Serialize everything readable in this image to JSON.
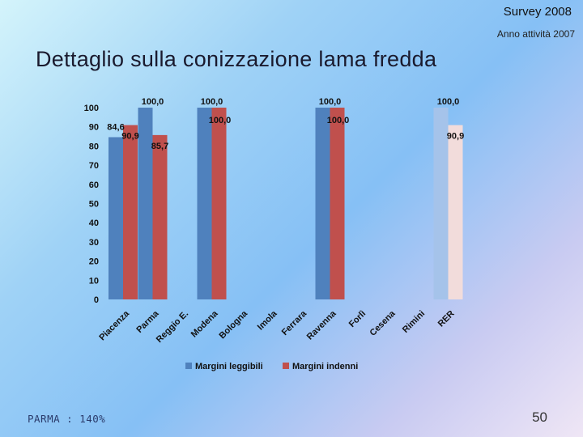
{
  "header": {
    "survey": "Survey 2008",
    "anno": "Anno attività 2007",
    "title": "Dettaglio sulla conizzazione lama fredda"
  },
  "footer": {
    "left": "PARMA : 140%",
    "page": "50"
  },
  "colors": {
    "series1": "#4f81bd",
    "series2": "#c0504d",
    "rer_series1": "#a5c3ea",
    "rer_series2": "#f2dcdb"
  },
  "chart_data": {
    "type": "bar",
    "categories": [
      "Piacenza",
      "Parma",
      "Reggio E.",
      "Modena",
      "Bologna",
      "Imola",
      "Ferrara",
      "Ravenna",
      "Forlì",
      "Cesena",
      "Rimini",
      "RER"
    ],
    "series": [
      {
        "name": "Margini leggibili",
        "values": [
          84.6,
          100.0,
          null,
          100.0,
          null,
          null,
          null,
          100.0,
          null,
          null,
          null,
          100.0
        ]
      },
      {
        "name": "Margini indenni",
        "values": [
          90.9,
          85.7,
          null,
          100.0,
          null,
          null,
          null,
          100.0,
          null,
          null,
          null,
          90.9
        ]
      }
    ],
    "data_labels": [
      [
        "84,6",
        "100,0",
        "",
        "100,0",
        "",
        "",
        "",
        "100,0",
        "",
        "",
        "",
        "100,0"
      ],
      [
        "90,9",
        "85,7",
        "",
        "100,0",
        "",
        "",
        "",
        "100,0",
        "",
        "",
        "",
        "90,9"
      ]
    ],
    "yticks": [
      "0",
      "10",
      "20",
      "30",
      "40",
      "50",
      "60",
      "70",
      "80",
      "90",
      "100"
    ],
    "ylim": [
      0,
      100
    ],
    "legend_position": "bottom",
    "grid": false
  }
}
